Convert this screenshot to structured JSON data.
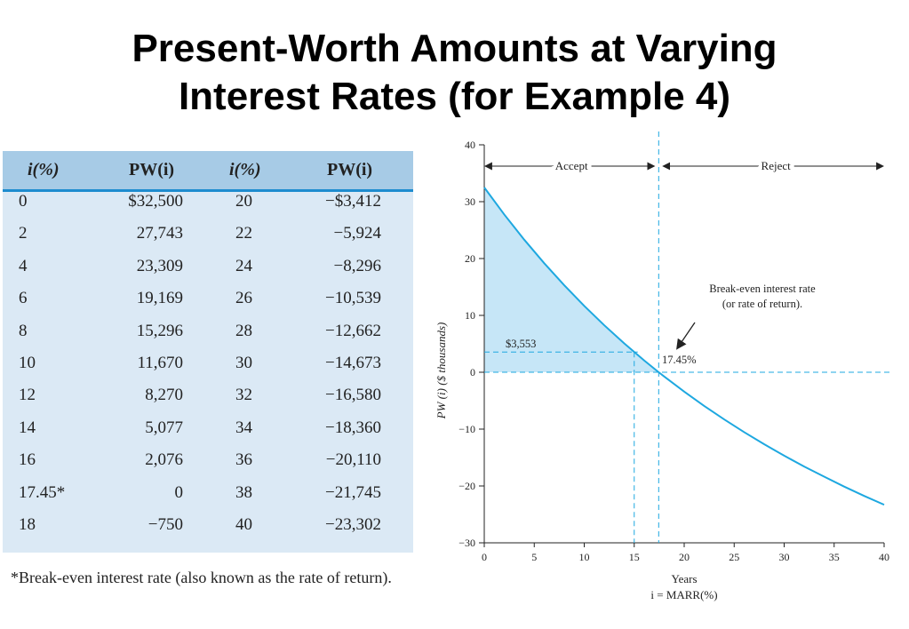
{
  "title": {
    "line1": "Present-Worth Amounts at Varying",
    "line2": "Interest Rates (for Example 4)"
  },
  "table": {
    "headers": [
      "i(%)",
      "PW(i)",
      "i(%)",
      "PW(i)"
    ],
    "rows": [
      [
        "0",
        "$32,500",
        "20",
        "−$3,412"
      ],
      [
        "2",
        "27,743",
        "22",
        "−5,924"
      ],
      [
        "4",
        "23,309",
        "24",
        "−8,296"
      ],
      [
        "6",
        "19,169",
        "26",
        "−10,539"
      ],
      [
        "8",
        "15,296",
        "28",
        "−12,662"
      ],
      [
        "10",
        "11,670",
        "30",
        "−14,673"
      ],
      [
        "12",
        "8,270",
        "32",
        "−16,580"
      ],
      [
        "14",
        "5,077",
        "34",
        "−18,360"
      ],
      [
        "16",
        "2,076",
        "36",
        "−20,110"
      ],
      [
        "17.45*",
        "0",
        "38",
        "−21,745"
      ],
      [
        "18",
        "−750",
        "40",
        "−23,302"
      ]
    ],
    "footnote": "*Break-even interest rate (also known as the rate of return)."
  },
  "chart_data": {
    "type": "line",
    "xlabel_line1": "Years",
    "xlabel_line2": "i = MARR(%)",
    "ylabel": "PW (i) ($ thousands)",
    "xlim": [
      0,
      40
    ],
    "ylim": [
      -30,
      40
    ],
    "x_ticks": [
      0,
      5,
      10,
      15,
      20,
      25,
      30,
      35,
      40
    ],
    "y_ticks": [
      -30,
      -20,
      -10,
      0,
      10,
      20,
      30,
      40
    ],
    "x": [
      0,
      2,
      4,
      6,
      8,
      10,
      12,
      14,
      16,
      17.45,
      18,
      20,
      22,
      24,
      26,
      28,
      30,
      32,
      34,
      36,
      38,
      40
    ],
    "values": [
      32.5,
      27.743,
      23.309,
      19.169,
      15.296,
      11.67,
      8.27,
      5.077,
      2.076,
      0,
      -0.75,
      -3.412,
      -5.924,
      -8.296,
      -10.539,
      -12.662,
      -14.673,
      -16.58,
      -18.36,
      -20.11,
      -21.745,
      -23.302
    ],
    "annotations": {
      "accept": "Accept",
      "reject": "Reject",
      "breakeven_line1": "Break-even interest rate",
      "breakeven_line2": "(or rate of return).",
      "breakeven_value": "17.45%",
      "marker_value": "$3,553"
    },
    "breakeven_x": 17.45,
    "marker_x": 15,
    "marker_y": 3.553,
    "line_color": "#1ea8e0",
    "fill_color": "#c6e6f7",
    "grid": false
  }
}
